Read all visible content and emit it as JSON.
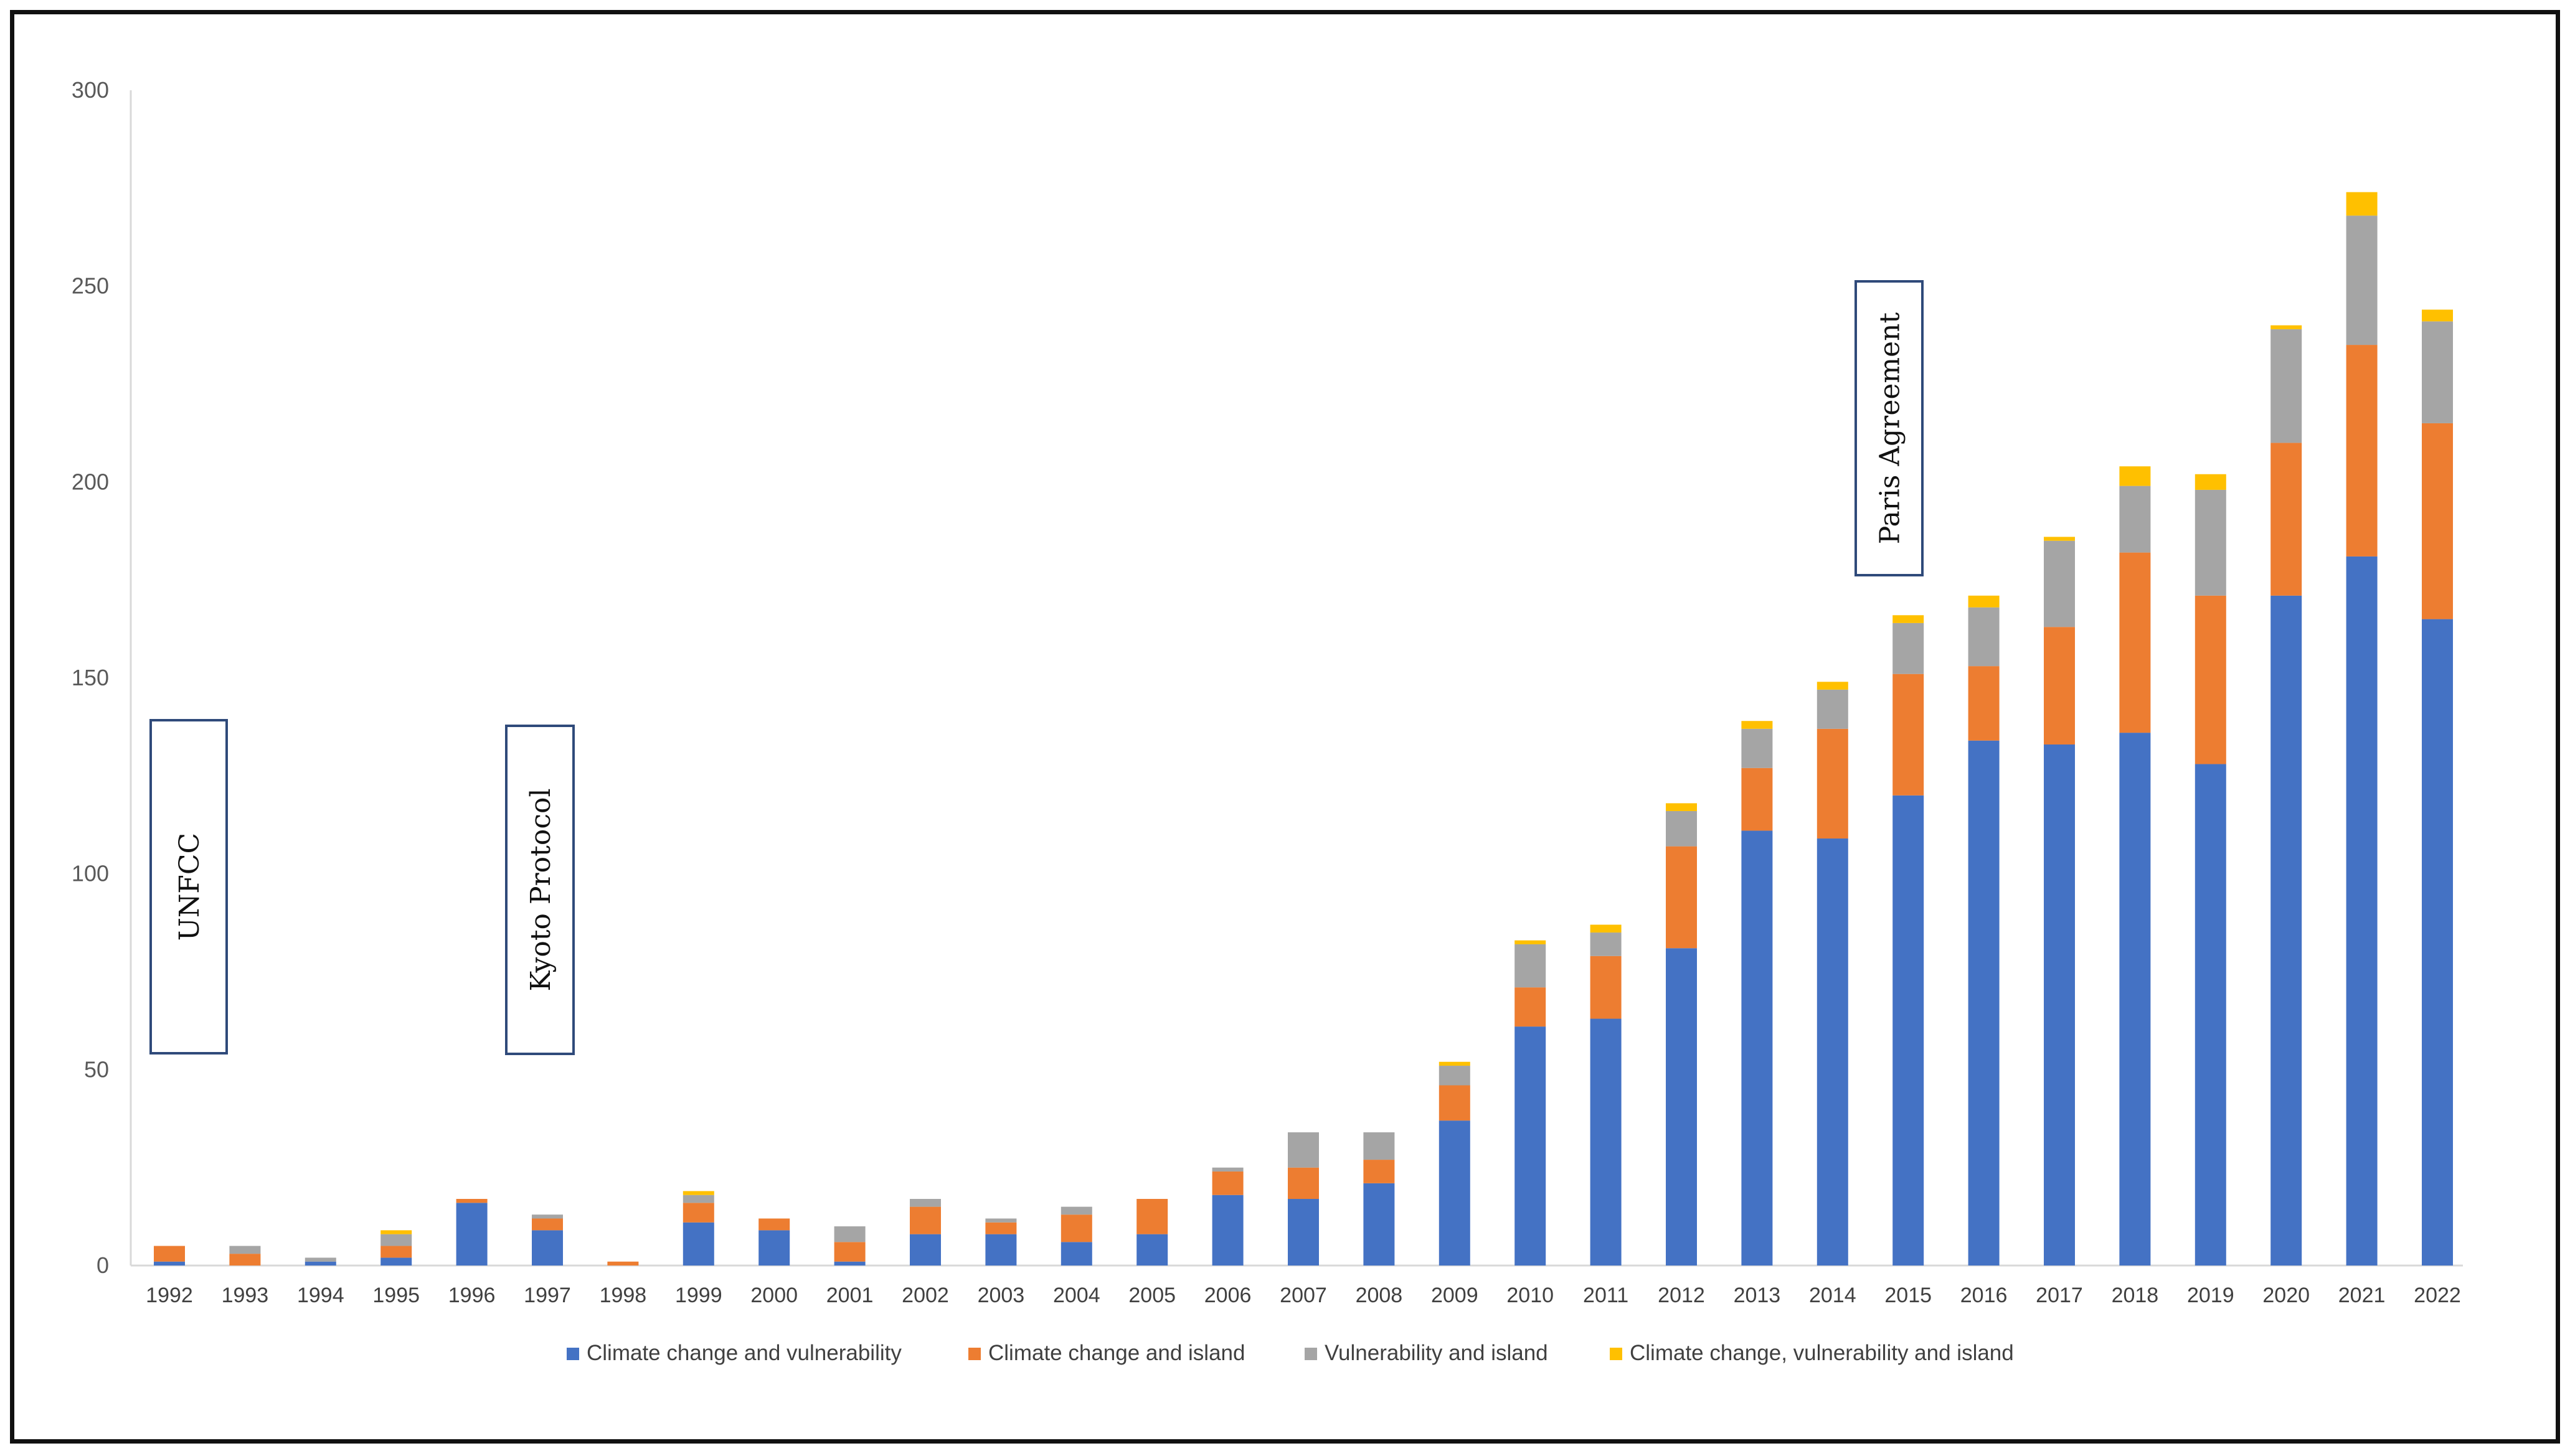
{
  "chart_data": {
    "type": "bar",
    "stacked": true,
    "title": "",
    "xlabel": "",
    "ylabel": "",
    "ylim": [
      0,
      300
    ],
    "yticks": [
      0,
      50,
      100,
      150,
      200,
      250,
      300
    ],
    "grid": false,
    "legend_position": "bottom",
    "categories": [
      "1992",
      "1993",
      "1994",
      "1995",
      "1996",
      "1997",
      "1998",
      "1999",
      "2000",
      "2001",
      "2002",
      "2003",
      "2004",
      "2005",
      "2006",
      "2007",
      "2008",
      "2009",
      "2010",
      "2011",
      "2012",
      "2013",
      "2014",
      "2015",
      "2016",
      "2017",
      "2018",
      "2019",
      "2020",
      "2021",
      "2022"
    ],
    "series": [
      {
        "name": "Climate change and vulnerability",
        "color": "#4472C4",
        "values": [
          1,
          0,
          1,
          2,
          16,
          9,
          0,
          11,
          9,
          1,
          8,
          8,
          6,
          8,
          18,
          17,
          21,
          37,
          61,
          63,
          81,
          111,
          109,
          120,
          134,
          133,
          136,
          128,
          171,
          181,
          165
        ]
      },
      {
        "name": "Climate change and island",
        "color": "#ED7D31",
        "values": [
          4,
          3,
          0,
          3,
          1,
          3,
          1,
          5,
          3,
          5,
          7,
          3,
          7,
          9,
          6,
          8,
          6,
          9,
          10,
          16,
          26,
          16,
          28,
          31,
          19,
          30,
          46,
          43,
          39,
          54,
          50
        ]
      },
      {
        "name": "Vulnerability and island",
        "color": "#A5A5A5",
        "values": [
          0,
          2,
          1,
          3,
          0,
          1,
          0,
          2,
          0,
          4,
          2,
          1,
          2,
          0,
          1,
          9,
          7,
          5,
          11,
          6,
          9,
          10,
          10,
          13,
          15,
          22,
          17,
          27,
          29,
          33,
          26
        ]
      },
      {
        "name": "Climate change, vulnerability and island",
        "color": "#FFC000",
        "values": [
          0,
          0,
          0,
          1,
          0,
          0,
          0,
          1,
          0,
          0,
          0,
          0,
          0,
          0,
          0,
          0,
          0,
          1,
          1,
          2,
          2,
          2,
          2,
          2,
          3,
          1,
          5,
          4,
          1,
          6,
          3
        ]
      }
    ],
    "annotations": [
      {
        "text": "UNFCC",
        "near": "1992"
      },
      {
        "text": "Kyoto Protocol",
        "near": "1997"
      },
      {
        "text": "Paris Agreement",
        "near": "2015"
      }
    ]
  }
}
